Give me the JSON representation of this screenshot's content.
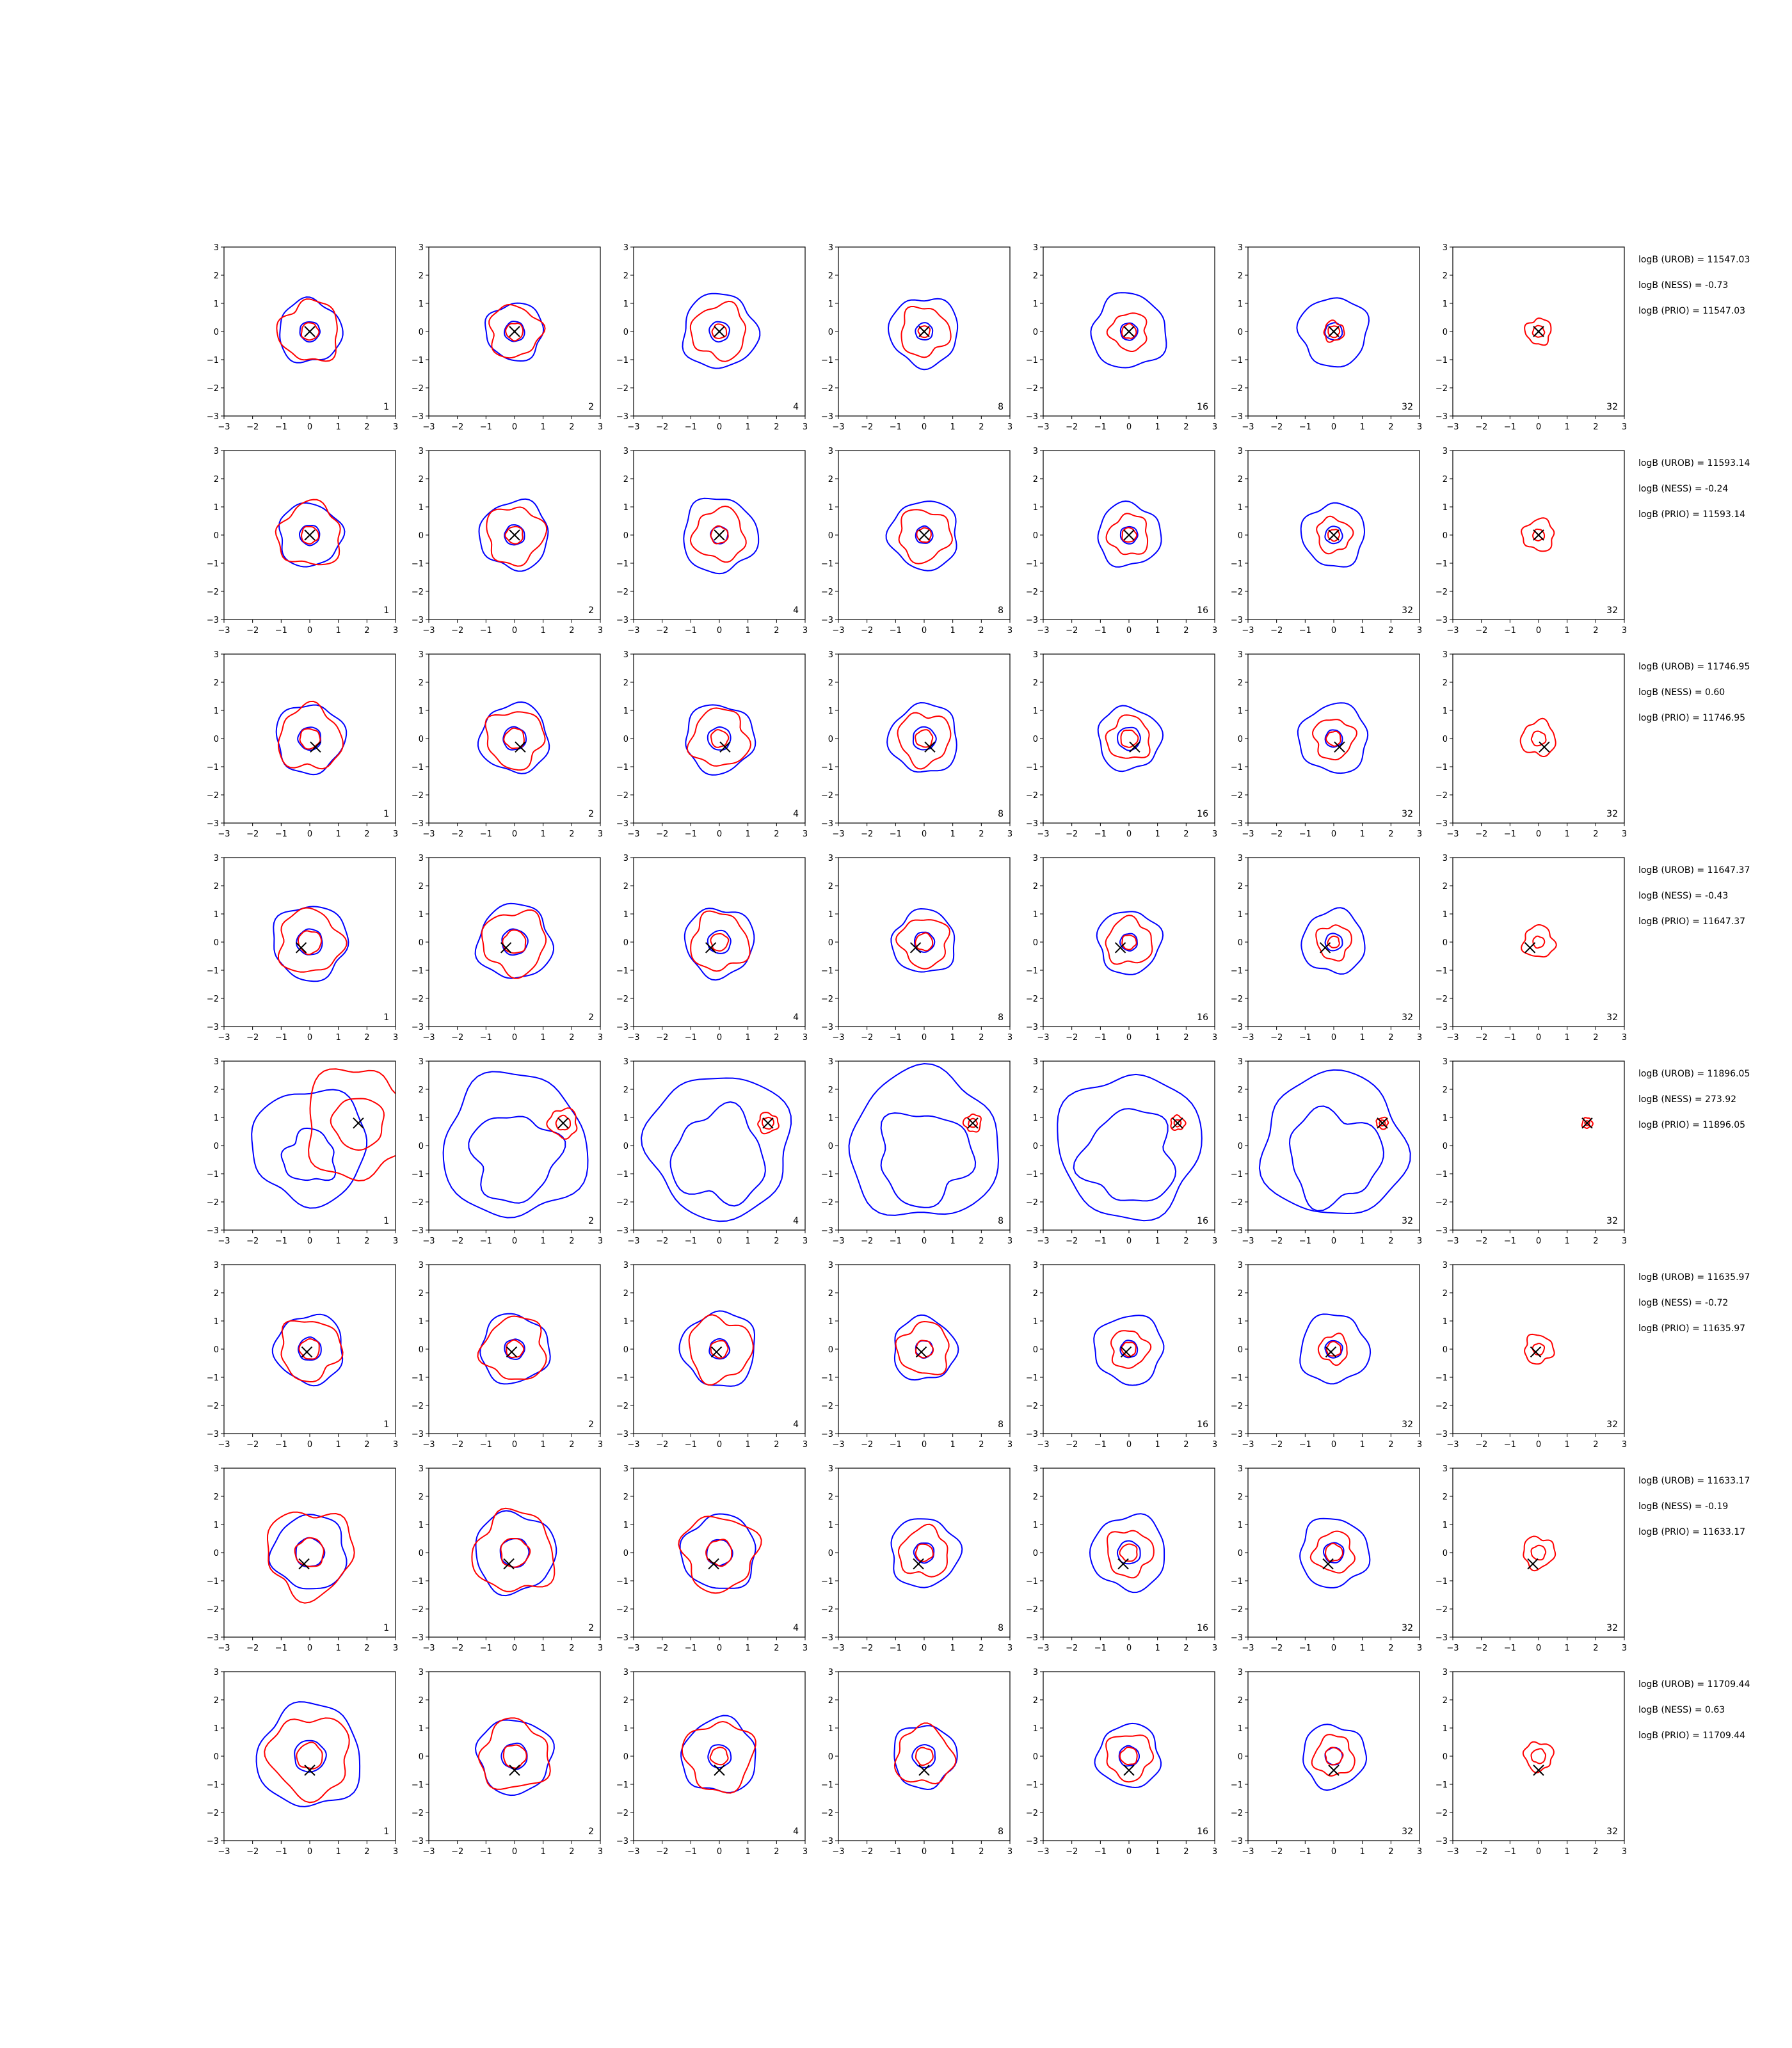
{
  "chart_data": {
    "type": "contour-grid",
    "xlim": [
      -3,
      3
    ],
    "ylim": [
      -3,
      3
    ],
    "xticks": [
      -3,
      -2,
      -1,
      0,
      1,
      2,
      3
    ],
    "yticks": [
      -3,
      -2,
      -1,
      0,
      1,
      2,
      3
    ],
    "grid": false,
    "series_colors": {
      "blue": "#0000ff",
      "red": "#ff0000",
      "marker": "#000000"
    },
    "column_labels": [
      "1",
      "2",
      "4",
      "8",
      "16",
      "32",
      "32"
    ],
    "rows": [
      {
        "marker": [
          0.0,
          0.0
        ],
        "stats": [
          "logB (UROB) = 11547.03",
          "logB (NESS) = -0.73",
          "logB (PRIO) = 11547.03"
        ],
        "blue_outer": [
          1.1,
          1.0,
          1.3,
          1.2,
          1.3,
          1.2,
          0
        ],
        "blue_inner": [
          0.35,
          0.35,
          0.35,
          0.3,
          0.3,
          0.3,
          0
        ],
        "red_outer": [
          1.05,
          0.9,
          0.95,
          0.85,
          0.65,
          0.35,
          0.45
        ],
        "red_inner": [
          0.3,
          0.3,
          0.25,
          0.2,
          0.25,
          0.2,
          0.2
        ]
      },
      {
        "marker": [
          0.0,
          0.0
        ],
        "stats": [
          "logB (UROB) = 11593.14",
          "logB (NESS) = -0.24",
          "logB (PRIO) = 11593.14"
        ],
        "blue_outer": [
          1.1,
          1.2,
          1.3,
          1.2,
          1.1,
          1.1,
          0
        ],
        "blue_inner": [
          0.35,
          0.35,
          0.3,
          0.3,
          0.3,
          0.3,
          0
        ],
        "red_outer": [
          1.1,
          1.0,
          0.9,
          0.9,
          0.7,
          0.6,
          0.55
        ],
        "red_inner": [
          0.3,
          0.3,
          0.3,
          0.25,
          0.25,
          0.2,
          0.2
        ]
      },
      {
        "marker": [
          0.2,
          -0.3
        ],
        "stats": [
          "logB (UROB) = 11746.95",
          "logB (NESS) = 0.60",
          "logB (PRIO) = 11746.95"
        ],
        "blue_outer": [
          1.2,
          1.2,
          1.2,
          1.2,
          1.1,
          1.2,
          0
        ],
        "blue_inner": [
          0.4,
          0.4,
          0.4,
          0.4,
          0.4,
          0.3,
          0
        ],
        "red_outer": [
          1.1,
          1.0,
          1.0,
          0.9,
          0.75,
          0.7,
          0.6
        ],
        "red_inner": [
          0.35,
          0.35,
          0.3,
          0.3,
          0.3,
          0.25,
          0.25
        ]
      },
      {
        "marker": [
          -0.3,
          -0.2
        ],
        "stats": [
          "logB (UROB) = 11647.37",
          "logB (NESS) = -0.43",
          "logB (PRIO) = 11647.37"
        ],
        "blue_outer": [
          1.3,
          1.3,
          1.2,
          1.1,
          1.1,
          1.1,
          0
        ],
        "blue_inner": [
          0.45,
          0.45,
          0.4,
          0.35,
          0.3,
          0.3,
          0
        ],
        "red_outer": [
          1.1,
          1.1,
          1.0,
          0.85,
          0.8,
          0.6,
          0.55
        ],
        "red_inner": [
          0.4,
          0.4,
          0.3,
          0.3,
          0.25,
          0.2,
          0.2
        ]
      },
      {
        "marker": [
          1.7,
          0.8
        ],
        "stats": [
          "logB (UROB) = 11896.05",
          "logB (NESS) = 273.92",
          "logB (PRIO) = 11896.05"
        ],
        "blue_outer": [
          2.0,
          2.5,
          2.5,
          2.6,
          2.5,
          2.5,
          0
        ],
        "blue_inner": [
          0.9,
          1.5,
          1.6,
          1.6,
          1.6,
          1.6,
          0
        ],
        "red_outer": [
          1.9,
          0.5,
          0.35,
          0.3,
          0.25,
          0.2,
          0.18
        ],
        "red_inner": [
          0.9,
          0.25,
          0.2,
          0.15,
          0.12,
          0.1,
          0.08
        ]
      },
      {
        "marker": [
          -0.1,
          -0.1
        ],
        "stats": [
          "logB (UROB) = 11635.97",
          "logB (NESS) = -0.72",
          "logB (PRIO) = 11635.97"
        ],
        "blue_outer": [
          1.2,
          1.2,
          1.3,
          1.1,
          1.2,
          1.2,
          0
        ],
        "blue_inner": [
          0.4,
          0.35,
          0.35,
          0.3,
          0.3,
          0.3,
          0
        ],
        "red_outer": [
          1.05,
          1.1,
          1.1,
          0.9,
          0.65,
          0.5,
          0.5
        ],
        "red_inner": [
          0.35,
          0.3,
          0.3,
          0.3,
          0.25,
          0.25,
          0.2
        ]
      },
      {
        "marker": [
          -0.2,
          -0.4
        ],
        "stats": [
          "logB (UROB) = 11633.17",
          "logB (NESS) = -0.19",
          "logB (PRIO) = 11633.17"
        ],
        "blue_outer": [
          1.3,
          1.4,
          1.3,
          1.2,
          1.3,
          1.2,
          0
        ],
        "blue_inner": [
          0.5,
          0.5,
          0.45,
          0.35,
          0.4,
          0.35,
          0
        ],
        "red_outer": [
          1.5,
          1.4,
          1.3,
          0.85,
          0.8,
          0.7,
          0.55
        ],
        "red_inner": [
          0.5,
          0.5,
          0.45,
          0.3,
          0.3,
          0.3,
          0.25
        ]
      },
      {
        "marker": [
          0.0,
          -0.5
        ],
        "stats": [
          "logB (UROB) = 11709.44",
          "logB (NESS) = 0.63",
          "logB (PRIO) = 11709.44"
        ],
        "blue_outer": [
          1.8,
          1.3,
          1.3,
          1.1,
          1.1,
          1.1,
          0
        ],
        "blue_inner": [
          0.55,
          0.45,
          0.4,
          0.4,
          0.35,
          0.3,
          0
        ],
        "red_outer": [
          1.4,
          1.2,
          1.2,
          1.0,
          0.8,
          0.7,
          0.5
        ],
        "red_inner": [
          0.45,
          0.4,
          0.3,
          0.3,
          0.3,
          0.3,
          0.25
        ]
      }
    ]
  }
}
